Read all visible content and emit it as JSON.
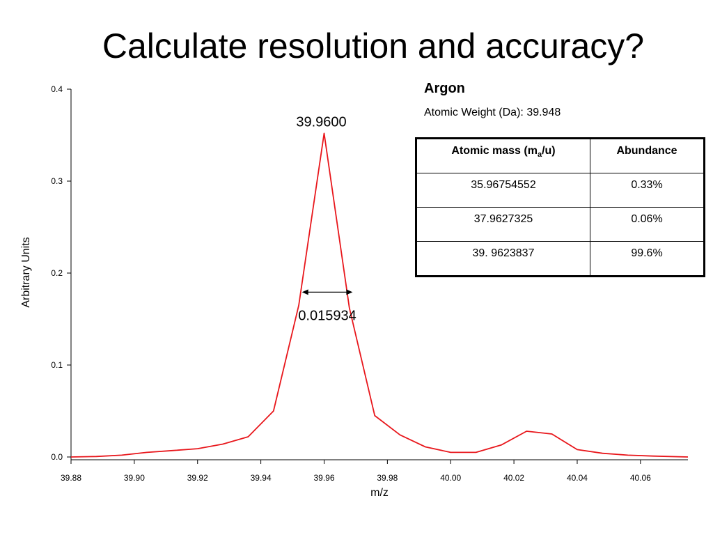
{
  "slide": {
    "title": "Calculate resolution and accuracy?"
  },
  "element": {
    "name": "Argon",
    "atomic_weight_label": "Atomic Weight (Da):",
    "atomic_weight_value": "39.948"
  },
  "isotope_table": {
    "headers": {
      "mass_prefix": "Atomic mass (m",
      "mass_sub": "a",
      "mass_suffix": "/u)",
      "abundance": "Abundance"
    },
    "rows": [
      {
        "mass": "35.96754552",
        "abundance": "0.33%"
      },
      {
        "mass": "37.9627325",
        "abundance": "0.06%"
      },
      {
        "mass": "39. 9623837",
        "abundance": "99.6%"
      }
    ]
  },
  "chart_data": {
    "type": "line",
    "xlabel": "m/z",
    "ylabel": "Arbitrary Units",
    "xlim": [
      39.88,
      40.075
    ],
    "ylim": [
      0,
      0.4
    ],
    "x_ticks": [
      "39.88",
      "39.90",
      "39.92",
      "39.94",
      "39.96",
      "39.98",
      "40.00",
      "40.02",
      "40.04",
      "40.06"
    ],
    "y_ticks": [
      "0.0",
      "0.1",
      "0.2",
      "0.3",
      "0.4"
    ],
    "grid": false,
    "color": "#e8161b",
    "series": [
      {
        "x": [
          39.88,
          39.888,
          39.896,
          39.904,
          39.912,
          39.92,
          39.928,
          39.936,
          39.944,
          39.952,
          39.96,
          39.968,
          39.976,
          39.984,
          39.992,
          40.0,
          40.008,
          40.016,
          40.024,
          40.032,
          40.04,
          40.048,
          40.056,
          40.064,
          40.075
        ],
        "y": [
          0.0,
          0.0005,
          0.002,
          0.005,
          0.007,
          0.009,
          0.014,
          0.022,
          0.05,
          0.165,
          0.352,
          0.162,
          0.045,
          0.024,
          0.011,
          0.005,
          0.005,
          0.013,
          0.028,
          0.025,
          0.008,
          0.004,
          0.002,
          0.001,
          0.0
        ]
      }
    ],
    "annotations": {
      "peak_label": "39.9600",
      "peak_x": 39.96,
      "peak_y": 0.352,
      "fwhm_label": "0.015934",
      "fwhm_x1": 39.953,
      "fwhm_x2": 39.969,
      "fwhm_y": 0.18
    }
  }
}
